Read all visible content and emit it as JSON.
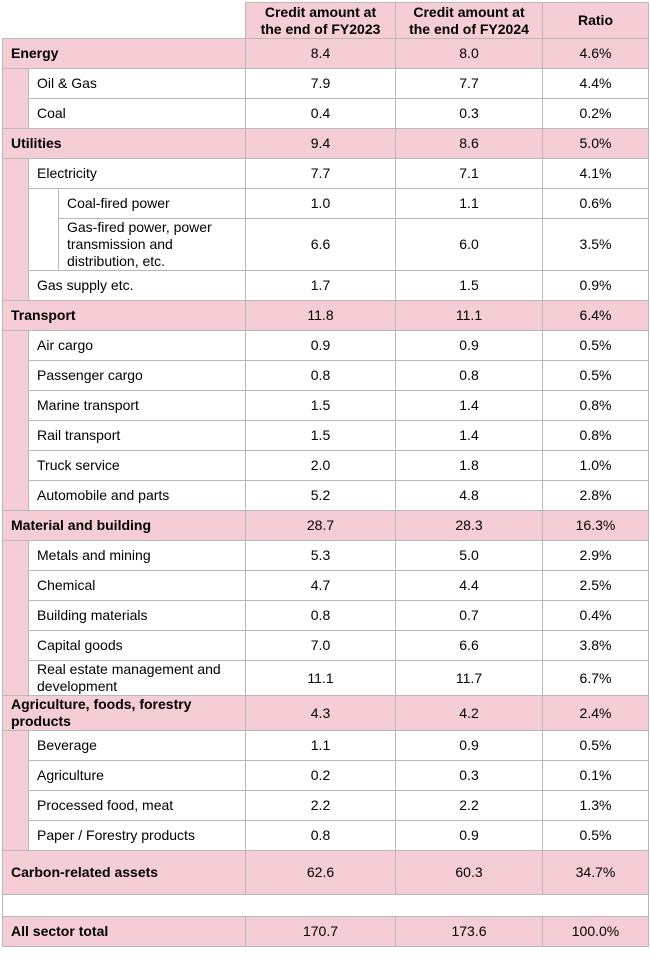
{
  "header": {
    "columns": [
      "Credit amount at the end of FY2023",
      "Credit amount at the end of FY2024",
      "Ratio"
    ]
  },
  "sectors": [
    {
      "name": "Energy",
      "cells": [
        "8.4",
        "8.0",
        "4.6%"
      ],
      "children": [
        {
          "name": "Oil & Gas",
          "cells": [
            "7.9",
            "7.7",
            "4.4%"
          ]
        },
        {
          "name": "Coal",
          "cells": [
            "0.4",
            "0.3",
            "0.2%"
          ]
        }
      ]
    },
    {
      "name": "Utilities",
      "cells": [
        "9.4",
        "8.6",
        "5.0%"
      ],
      "children": [
        {
          "name": "Electricity",
          "cells": [
            "7.7",
            "7.1",
            "4.1%"
          ],
          "children": [
            {
              "name": "Coal-fired power",
              "cells": [
                "1.0",
                "1.1",
                "0.6%"
              ]
            },
            {
              "name": "Gas-fired power, power transmission and distribution, etc.",
              "cells": [
                "6.6",
                "6.0",
                "3.5%"
              ]
            }
          ]
        },
        {
          "name": "Gas supply etc.",
          "cells": [
            "1.7",
            "1.5",
            "0.9%"
          ]
        }
      ]
    },
    {
      "name": "Transport",
      "cells": [
        "11.8",
        "11.1",
        "6.4%"
      ],
      "children": [
        {
          "name": "Air cargo",
          "cells": [
            "0.9",
            "0.9",
            "0.5%"
          ]
        },
        {
          "name": "Passenger cargo",
          "cells": [
            "0.8",
            "0.8",
            "0.5%"
          ]
        },
        {
          "name": "Marine transport",
          "cells": [
            "1.5",
            "1.4",
            "0.8%"
          ]
        },
        {
          "name": "Rail transport",
          "cells": [
            "1.5",
            "1.4",
            "0.8%"
          ]
        },
        {
          "name": "Truck service",
          "cells": [
            "2.0",
            "1.8",
            "1.0%"
          ]
        },
        {
          "name": "Automobile and parts",
          "cells": [
            "5.2",
            "4.8",
            "2.8%"
          ]
        }
      ]
    },
    {
      "name": "Material and building",
      "cells": [
        "28.7",
        "28.3",
        "16.3%"
      ],
      "children": [
        {
          "name": "Metals and mining",
          "cells": [
            "5.3",
            "5.0",
            "2.9%"
          ]
        },
        {
          "name": "Chemical",
          "cells": [
            "4.7",
            "4.4",
            "2.5%"
          ]
        },
        {
          "name": "Building materials",
          "cells": [
            "0.8",
            "0.7",
            "0.4%"
          ]
        },
        {
          "name": "Capital goods",
          "cells": [
            "7.0",
            "6.6",
            "3.8%"
          ]
        },
        {
          "name": "Real estate management and development",
          "cells": [
            "11.1",
            "11.7",
            "6.7%"
          ]
        }
      ]
    },
    {
      "name": "Agriculture, foods, forestry products",
      "cells": [
        "4.3",
        "4.2",
        "2.4%"
      ],
      "children": [
        {
          "name": "Beverage",
          "cells": [
            "1.1",
            "0.9",
            "0.5%"
          ]
        },
        {
          "name": "Agriculture",
          "cells": [
            "0.2",
            "0.3",
            "0.1%"
          ]
        },
        {
          "name": "Processed food, meat",
          "cells": [
            "2.2",
            "2.2",
            "1.3%"
          ]
        },
        {
          "name": "Paper / Forestry products",
          "cells": [
            "0.8",
            "0.9",
            "0.5%"
          ]
        }
      ]
    }
  ],
  "carbon_total": {
    "name": "Carbon-related assets",
    "cells": [
      "62.6",
      "60.3",
      "34.7%"
    ]
  },
  "all_total": {
    "name": "All sector total",
    "cells": [
      "170.7",
      "173.6",
      "100.0%"
    ]
  }
}
